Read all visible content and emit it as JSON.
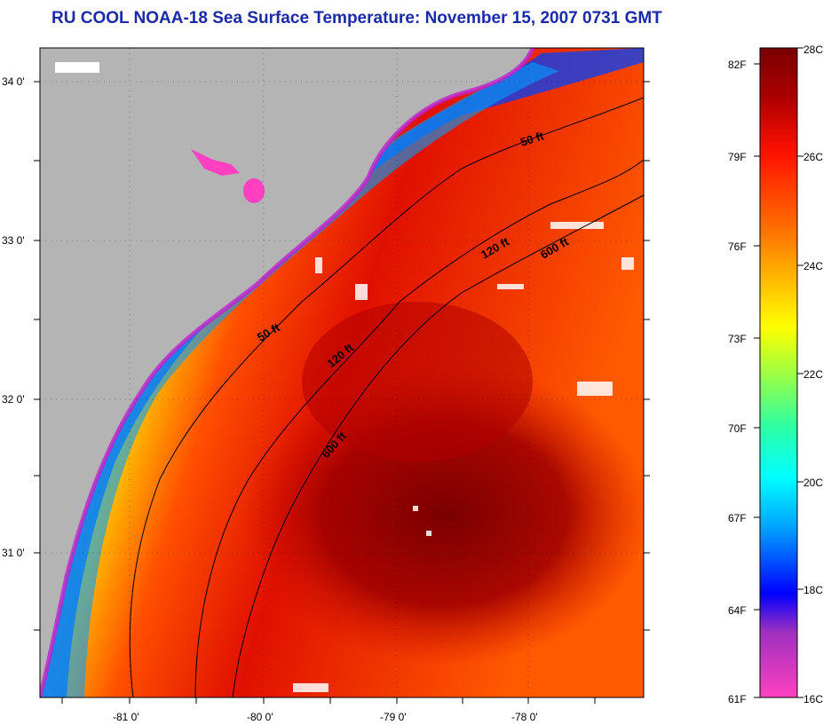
{
  "title": "RU COOL  NOAA-18  Sea Surface Temperature:  November 15, 2007 0731 GMT",
  "map": {
    "lat_labels": [
      "34 0'",
      "33 0'",
      "32 0'",
      "31 0'"
    ],
    "lon_labels": [
      "-81 0'",
      "-80 0'",
      "-79 0'",
      "-78 0'"
    ],
    "contour_labels": [
      {
        "text": "50 ft",
        "name": "contour-50ft-north-label"
      },
      {
        "text": "120 ft",
        "name": "contour-120ft-north-label"
      },
      {
        "text": "600 ft",
        "name": "contour-600ft-north-label"
      },
      {
        "text": "50 ft",
        "name": "contour-50ft-south-label"
      },
      {
        "text": "120 ft",
        "name": "contour-120ft-south-label"
      },
      {
        "text": "600 ft",
        "name": "contour-600ft-south-label"
      }
    ],
    "colors": {
      "land": "#b4b4b4",
      "cold": "#ff40c0",
      "warm": "#7a0000"
    }
  },
  "colorbar": {
    "fahrenheit": [
      "82F",
      "79F",
      "76F",
      "73F",
      "70F",
      "67F",
      "64F",
      "61F"
    ],
    "celsius": [
      "28C",
      "26C",
      "24C",
      "22C",
      "20C",
      "18C",
      "16C"
    ],
    "gradient_stops": [
      "#7a0000",
      "#c00000",
      "#ff2a00",
      "#ff7a00",
      "#ffd000",
      "#ffff00",
      "#a0ff40",
      "#30ffa0",
      "#00ffff",
      "#00a0ff",
      "#0000ff",
      "#a030c0",
      "#ff40c0"
    ]
  }
}
